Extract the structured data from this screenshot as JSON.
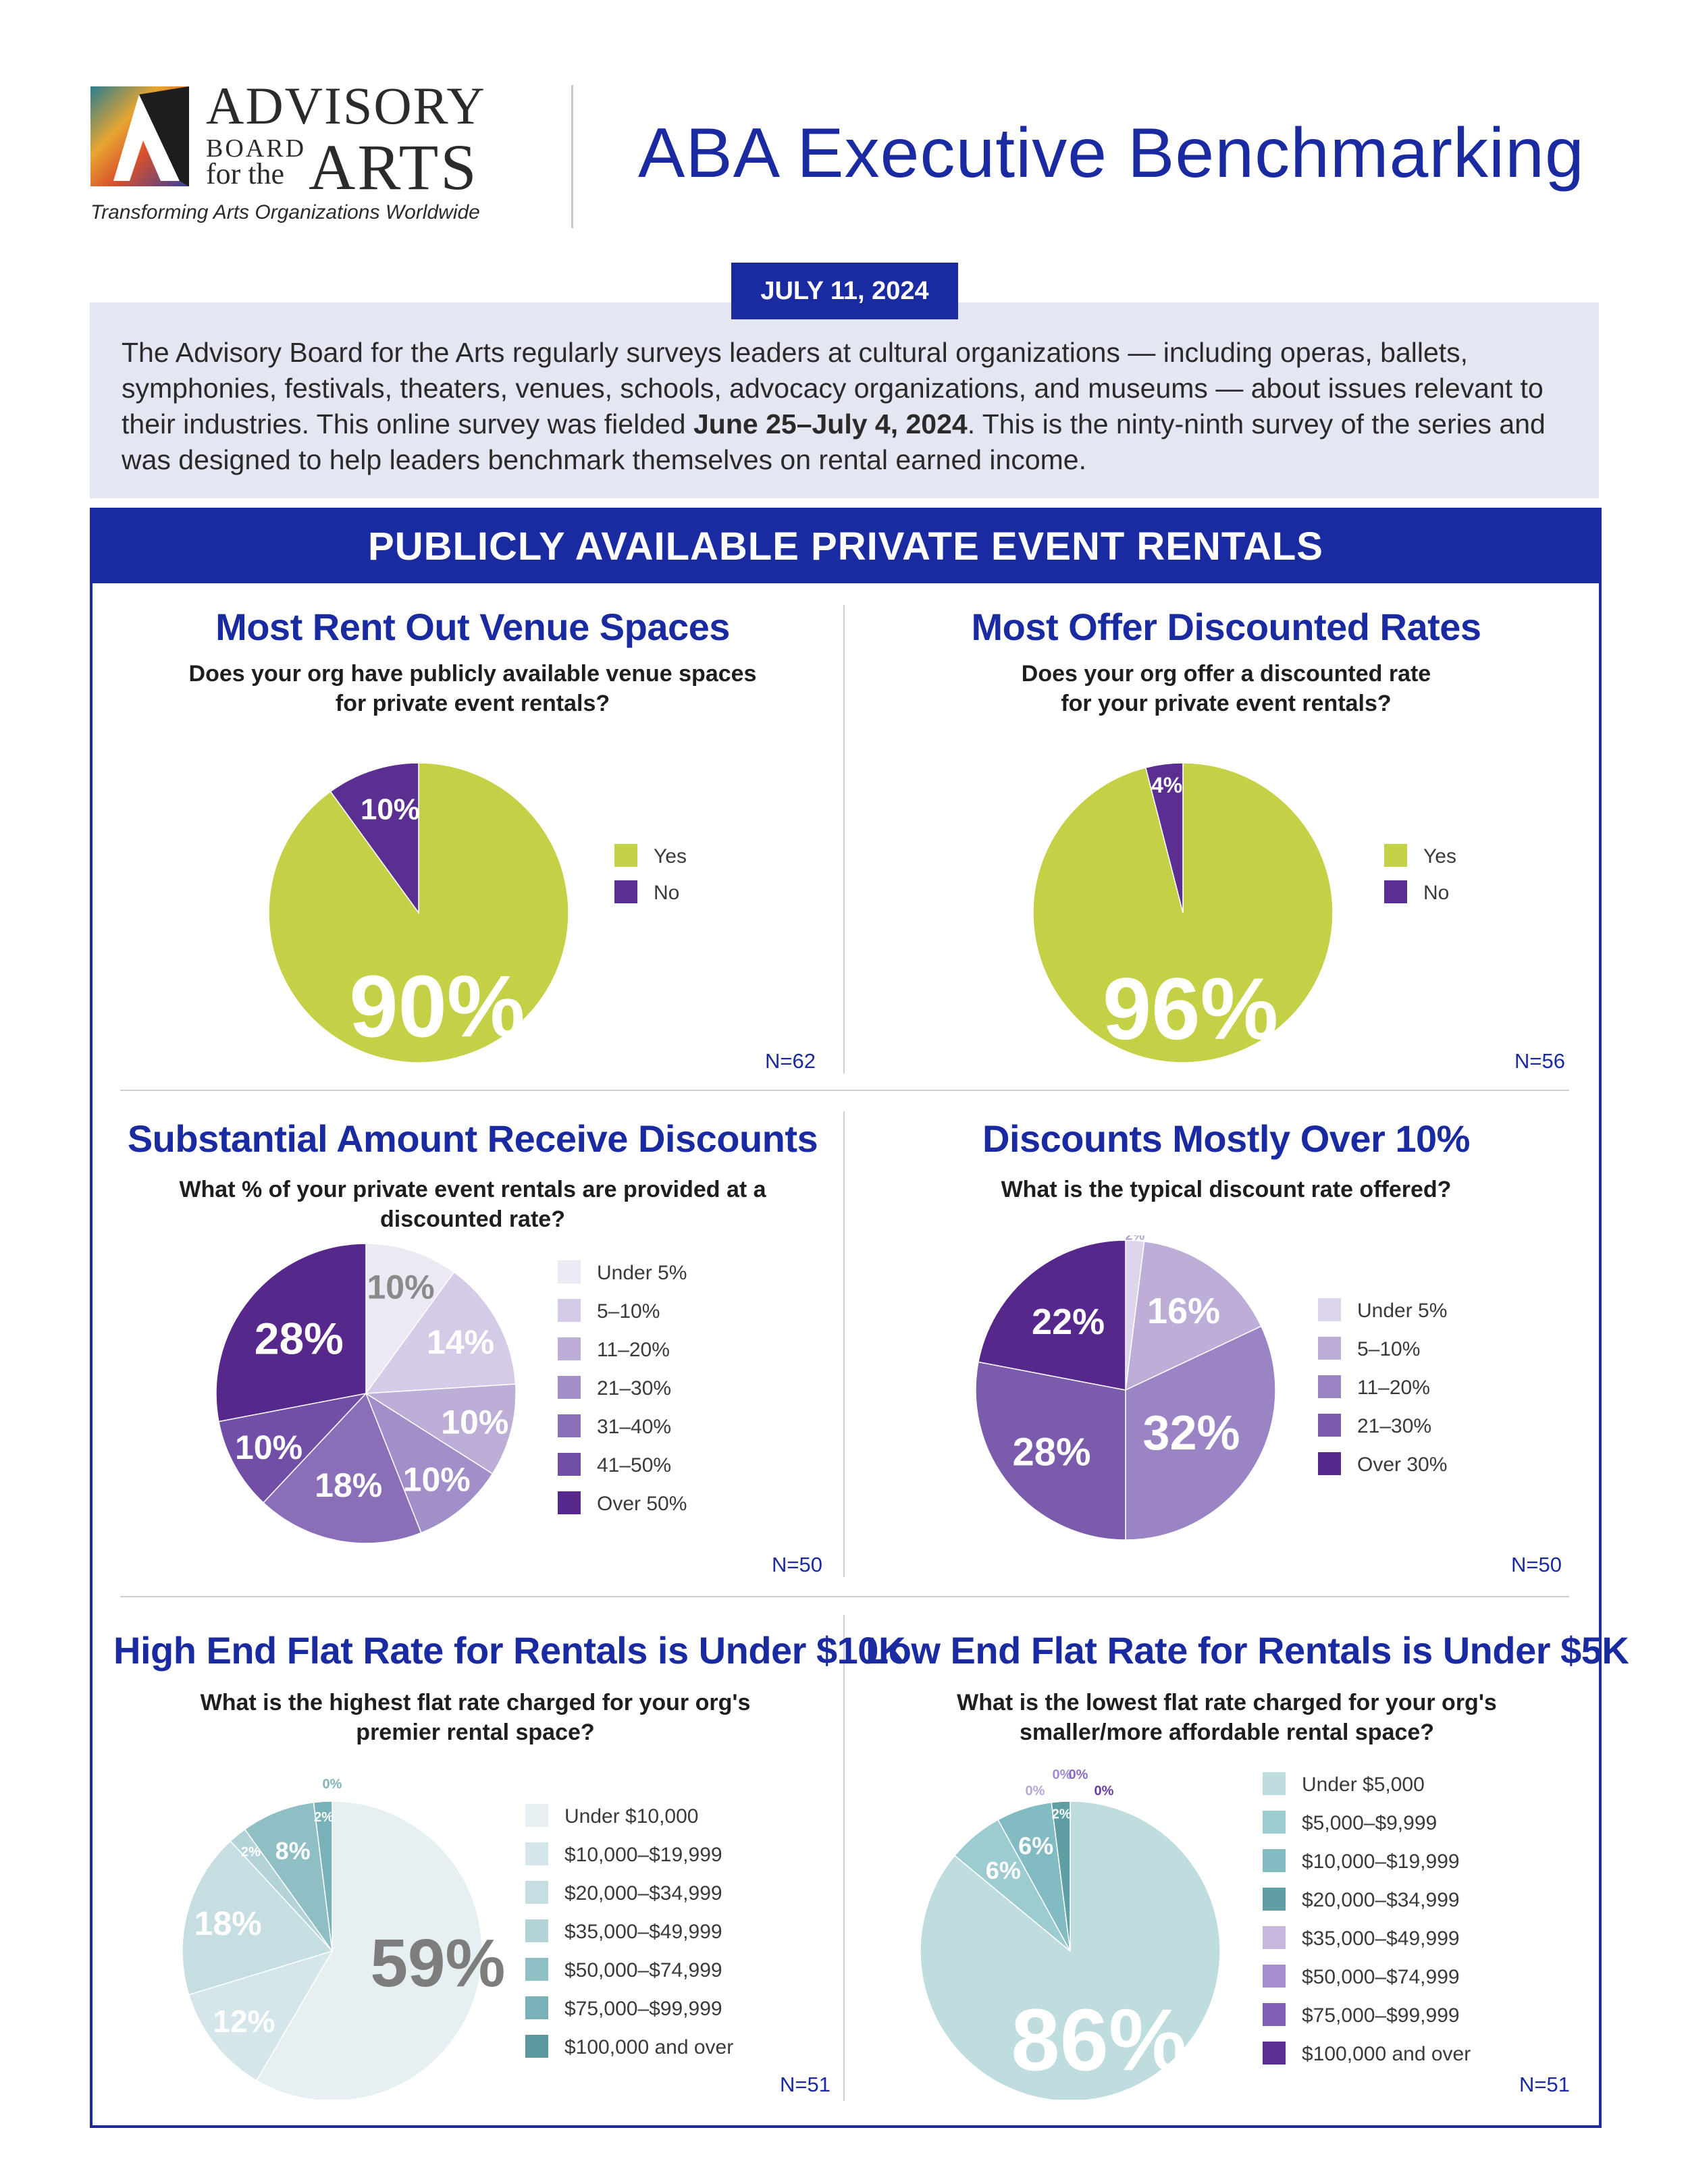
{
  "header": {
    "logo": {
      "line1": "ADVISORY",
      "line2": "BOARD",
      "line3": "for the",
      "line4": "ARTS"
    },
    "tagline": "Transforming Arts Organizations Worldwide",
    "title": "ABA Executive Benchmarking"
  },
  "date": "JULY 11, 2024",
  "intro": {
    "before": "The Advisory Board for the Arts regularly surveys leaders at cultural organizations — including operas, ballets, symphonies, festivals, theaters, venues, schools, advocacy organizations, and museums — about issues relevant to their industries. This online survey was fielded ",
    "bold": "June 25–July 4, 2024",
    "after": ". This is the ninty-ninth survey of the series and was designed to help leaders benchmark themselves on rental earned income."
  },
  "section_title": "PUBLICLY AVAILABLE PRIVATE EVENT RENTALS",
  "panels": [
    {
      "title": "Most Rent Out Venue Spaces",
      "question": [
        "Does your org have publicly available venue spaces",
        "for private event rentals?"
      ],
      "n": "N=62"
    },
    {
      "title": "Most Offer Discounted Rates",
      "question": [
        "Does your org offer a discounted rate",
        "for your private event rentals?"
      ],
      "n": "N=56"
    },
    {
      "title": "Substantial Amount Receive Discounts",
      "question": [
        "What % of your private event rentals are provided at a discounted rate?"
      ],
      "n": "N=50"
    },
    {
      "title": "Discounts Mostly Over 10%",
      "question": [
        "What is the typical discount rate offered?"
      ],
      "n": "N=50"
    },
    {
      "title": "High End Flat Rate for Rentals is Under $10K",
      "question": [
        "What is the highest flat rate charged for your org's",
        "premier rental space?"
      ],
      "n": "N=51"
    },
    {
      "title": "Low End Flat Rate for Rentals is Under $5K",
      "question": [
        "What is the lowest flat rate charged for your org's",
        "smaller/more affordable rental space?"
      ],
      "n": "N=51"
    }
  ],
  "chart_data": [
    {
      "type": "pie",
      "title": "Most Rent Out Venue Spaces",
      "categories": [
        "Yes",
        "No"
      ],
      "values": [
        90,
        10
      ],
      "labels": [
        "90%",
        "10%"
      ],
      "colors": [
        "#c4d146",
        "#5b2e91"
      ],
      "legend": "right"
    },
    {
      "type": "pie",
      "title": "Most Offer Discounted Rates",
      "categories": [
        "Yes",
        "No"
      ],
      "values": [
        96,
        4
      ],
      "labels": [
        "96%",
        "4%"
      ],
      "colors": [
        "#c4d146",
        "#5b2e91"
      ],
      "legend": "right"
    },
    {
      "type": "pie",
      "title": "Substantial Amount Receive Discounts",
      "categories": [
        "Under 5%",
        "5–10%",
        "11–20%",
        "21–30%",
        "31–40%",
        "41–50%",
        "Over 50%"
      ],
      "values": [
        10,
        14,
        10,
        10,
        18,
        10,
        28
      ],
      "labels": [
        "10%",
        "14%",
        "10%",
        "10%",
        "18%",
        "10%",
        "28%"
      ],
      "colors": [
        "#ece8f4",
        "#d5cbe6",
        "#bcaed7",
        "#a28ec8",
        "#8a6fb8",
        "#714fa6",
        "#56288c"
      ],
      "legend": "right"
    },
    {
      "type": "pie",
      "title": "Discounts Mostly Over 10%",
      "categories": [
        "Under 5%",
        "5–10%",
        "11–20%",
        "21–30%",
        "Over 30%"
      ],
      "values": [
        2,
        16,
        32,
        28,
        22
      ],
      "labels": [
        "2%",
        "16%",
        "32%",
        "28%",
        "22%"
      ],
      "colors": [
        "#ddd5ec",
        "#bcaed7",
        "#9b84c4",
        "#7a5bac",
        "#56288c"
      ],
      "legend": "right"
    },
    {
      "type": "pie",
      "title": "High End Flat Rate for Rentals is Under $10K",
      "categories": [
        "Under $10,000",
        "$10,000–$19,999",
        "$20,000–$34,999",
        "$35,000–$49,999",
        "$50,000–$74,999",
        "$75,000–$99,999",
        "$100,000 and over"
      ],
      "values": [
        59,
        12,
        18,
        2,
        8,
        2,
        0
      ],
      "labels": [
        "59%",
        "12%",
        "18%",
        "2%",
        "8%",
        "2%",
        "0%"
      ],
      "colors": [
        "#e6f0f2",
        "#d4e6e9",
        "#c6dee2",
        "#b3d3d8",
        "#8fbfc5",
        "#78b2b8",
        "#58989e"
      ],
      "legend": "right"
    },
    {
      "type": "pie",
      "title": "Low End Flat Rate for Rentals is Under $5K",
      "categories": [
        "Under $5,000",
        "$5,000–$9,999",
        "$10,000–$19,999",
        "$20,000–$34,999",
        "$35,000–$49,999",
        "$50,000–$74,999",
        "$75,000–$99,999",
        "$100,000 and over"
      ],
      "values": [
        86,
        6,
        6,
        2,
        0,
        0,
        0,
        0
      ],
      "labels": [
        "86%",
        "6%",
        "6%",
        "2%",
        "0%",
        "0%",
        "0%",
        "0%"
      ],
      "colors": [
        "#bfdcdf",
        "#9ccbd0",
        "#82bbc1",
        "#5f9ea3",
        "#c8b8e0",
        "#a58fcf",
        "#7f5fb5",
        "#5b2e91"
      ],
      "legend": "right"
    }
  ]
}
